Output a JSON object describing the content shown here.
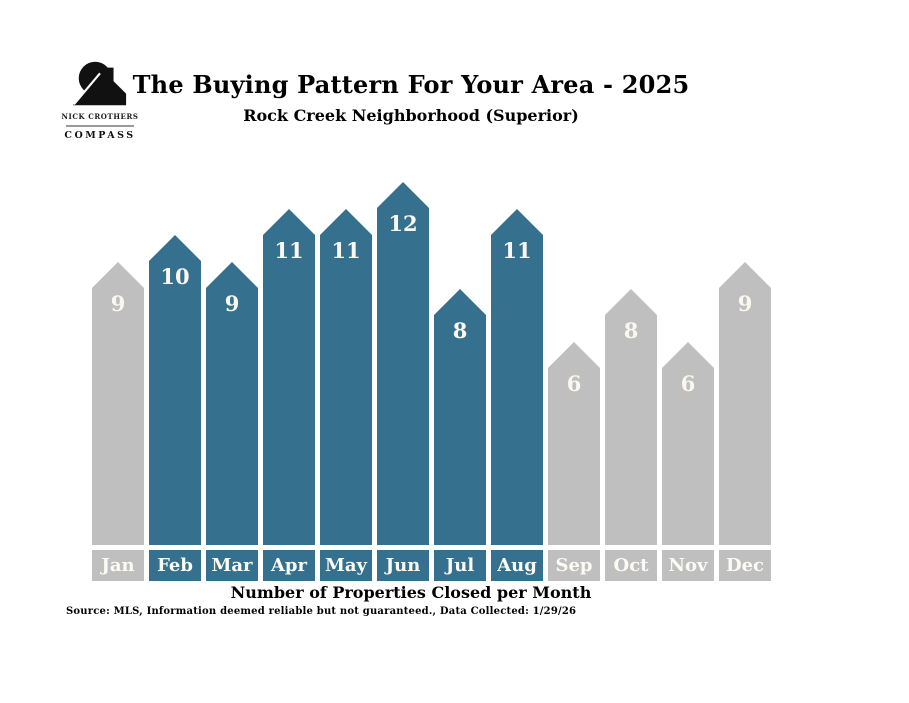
{
  "logo": {
    "name": "NICK CROTHERS",
    "brand": "COMPASS"
  },
  "header": {
    "title": "The Buying Pattern For Your Area - 2025",
    "subtitle": "Rock Creek Neighborhood (Superior)"
  },
  "chart_data": {
    "type": "bar",
    "title": "The Buying Pattern For Your Area - 2025",
    "subtitle": "Rock Creek Neighborhood (Superior)",
    "xlabel": "Number of Properties Closed per Month",
    "ylabel": "",
    "ylim": [
      0,
      12
    ],
    "grid": false,
    "legend": "none",
    "categories": [
      "Jan",
      "Feb",
      "Mar",
      "Apr",
      "May",
      "Jun",
      "Jul",
      "Aug",
      "Sep",
      "Oct",
      "Nov",
      "Dec"
    ],
    "values": [
      9,
      10,
      9,
      11,
      11,
      12,
      8,
      11,
      6,
      8,
      6,
      9
    ],
    "highlighted_months": [
      "Feb",
      "Mar",
      "Apr",
      "May",
      "Jun",
      "Jul",
      "Aug"
    ],
    "highlighted_flags": [
      false,
      true,
      true,
      true,
      true,
      true,
      true,
      true,
      false,
      false,
      false,
      false
    ],
    "bar_shape": "pentagon-arrow-up",
    "colors": {
      "active": "#35708E",
      "inactive": "#BFBFBF",
      "value_text": "#FAF7EF",
      "label_text": "#FCFAF4"
    }
  },
  "footer": {
    "axis_label": "Number of Properties Closed per Month",
    "source": "Source: MLS, Information deemed reliable but not guaranteed., Data Collected: 1/29/26"
  }
}
